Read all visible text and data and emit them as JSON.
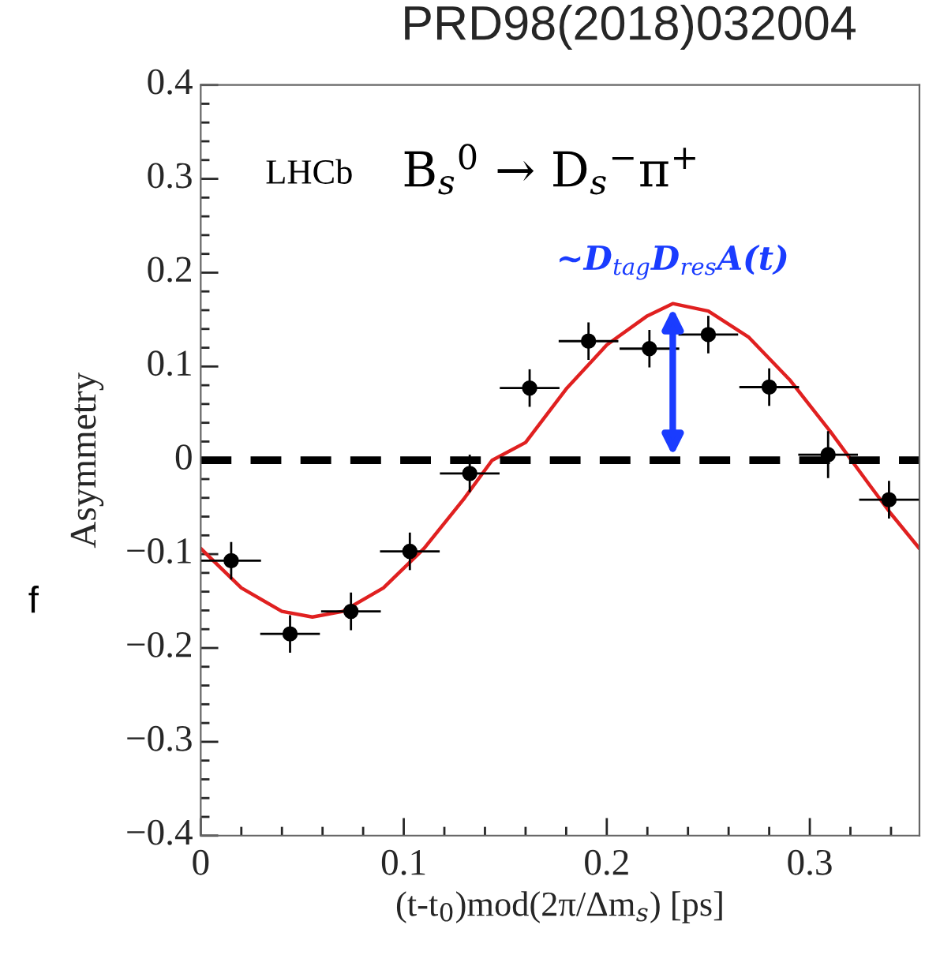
{
  "chart_data": {
    "type": "scatter",
    "title": "PRD98(2018)032004",
    "xlabel": "(t-t$_{0}$)mod(2π/Δm$_{s}$) [ps]",
    "ylabel": "Asymmetry",
    "series": [
      {
        "color": "#000000",
        "marker": "circle",
        "x": [
          0.015,
          0.044,
          0.074,
          0.103,
          0.1325,
          0.162,
          0.191,
          0.221,
          0.25,
          0.28,
          0.309,
          0.339
        ],
        "values": [
          -0.107,
          -0.185,
          -0.161,
          -0.097,
          -0.014,
          0.077,
          0.127,
          0.119,
          0.134,
          0.078,
          0.006,
          -0.042
        ],
        "errors": [
          0.02,
          0.02,
          0.02,
          0.02,
          0.02,
          0.02,
          0.02,
          0.02,
          0.02,
          0.02,
          0.025,
          0.02
        ],
        "xerrors": [
          0.0147,
          0.0147,
          0.0147,
          0.0147,
          0.0147,
          0.0147,
          0.0147,
          0.0147,
          0.0147,
          0.0147,
          0.0147,
          0.0147
        ]
      },
      {
        "type": "line",
        "color": "#e02020",
        "marker": "none",
        "line_style": "solid",
        "x": [
          0,
          0.02,
          0.04,
          0.055,
          0.07,
          0.09,
          0.11,
          0.13,
          0.1435,
          0.16,
          0.18,
          0.2,
          0.22,
          0.2325,
          0.25,
          0.27,
          0.29,
          0.31,
          0.33,
          0.34,
          0.354
        ],
        "values": [
          -0.094,
          -0.136,
          -0.161,
          -0.167,
          -0.161,
          -0.136,
          -0.094,
          -0.04,
          0,
          0.019,
          0.076,
          0.123,
          0.154,
          0.167,
          0.159,
          0.131,
          0.086,
          0.031,
          -0.028,
          -0.057,
          -0.094
        ]
      }
    ],
    "xlim": [
      0,
      0.354
    ],
    "ylim": [
      -0.4,
      0.4
    ],
    "xticks": [
      0,
      0.1,
      0.2,
      0.3
    ],
    "yticks": [
      {
        "value": -0.4,
        "label": "−0.4"
      },
      {
        "value": -0.3,
        "label": "−0.3"
      },
      {
        "value": -0.2,
        "label": "−0.2"
      },
      {
        "value": -0.1,
        "label": "−0.1"
      },
      0,
      0.1,
      0.2,
      0.3,
      0.4
    ],
    "ref_lines": [
      {
        "axis": "y",
        "value": 0,
        "color": "#000000",
        "line_style": "dashed"
      }
    ],
    "annotations": [
      "LHCb",
      "B$_{s}$$^{0}$ → D$_{s}$$^{−}$π$^{+}$",
      {
        "text": "~D$_{tag}$D$_{res}$A(t)",
        "x": 0.2325,
        "y": 0.167
      },
      "f"
    ],
    "grid": false,
    "legend": false
  }
}
